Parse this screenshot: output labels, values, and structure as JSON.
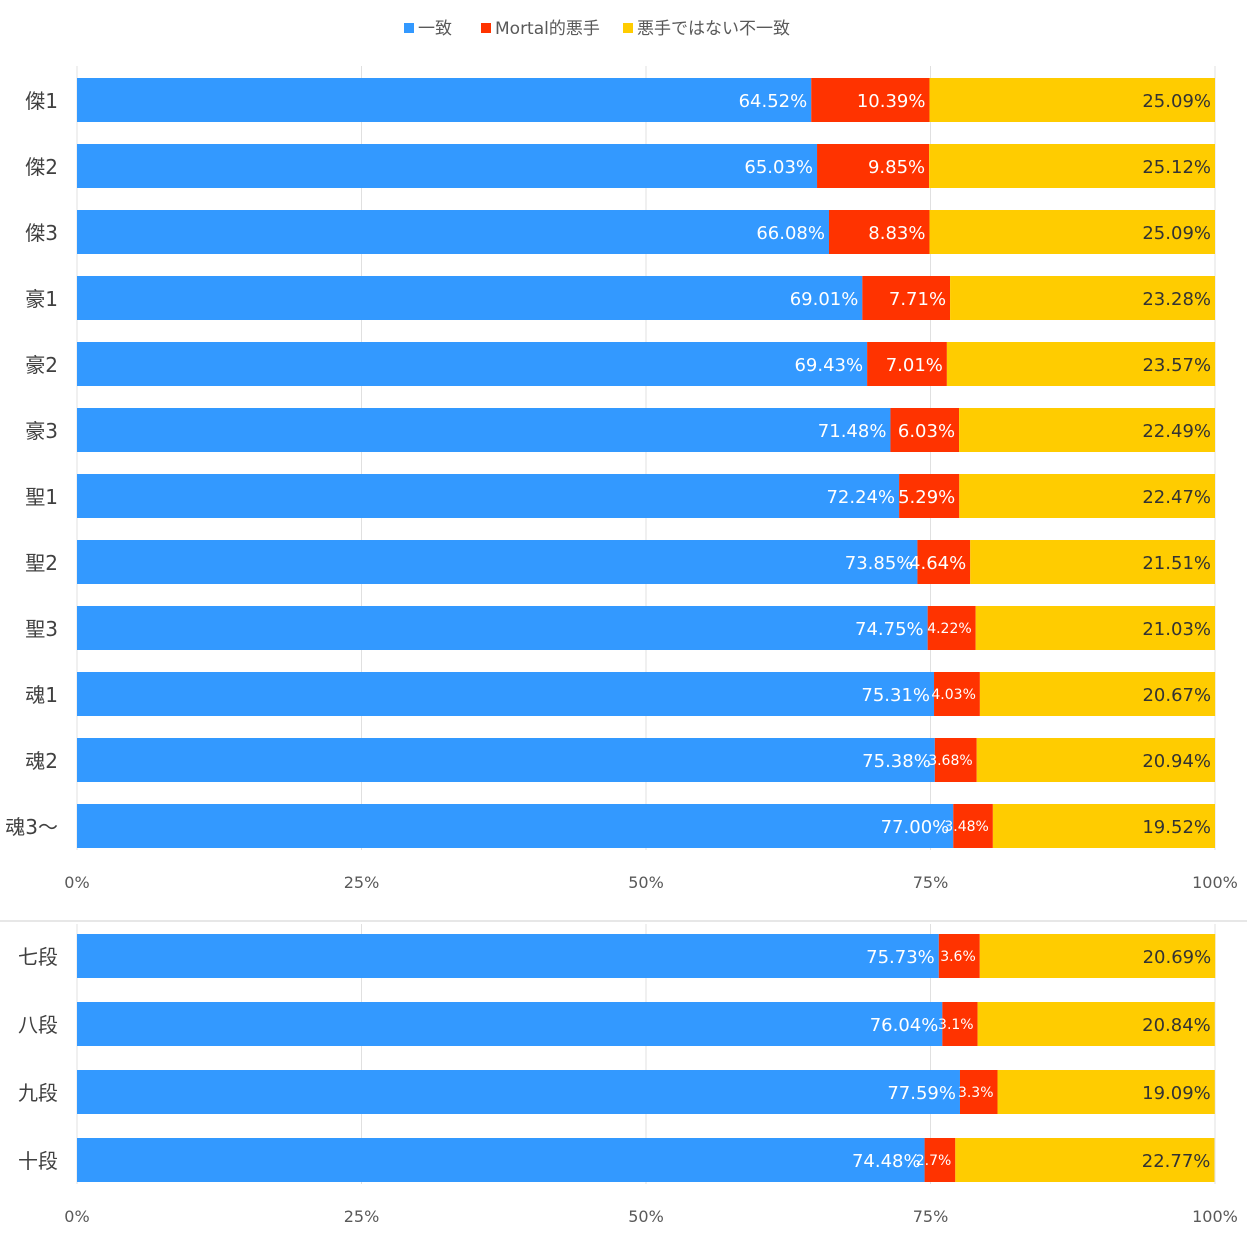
{
  "colors": {
    "match": "#3399ff",
    "bad": "#ff3300",
    "mismatch": "#ffcc00",
    "grid": "#e0e0e0",
    "divider": "#cfcfcf"
  },
  "chart_data": [
    {
      "type": "bar",
      "orientation": "horizontal",
      "stacked": "percent",
      "legend": [
        "一致",
        "Mortal的悪手",
        "悪手ではない不一致"
      ],
      "legend_position": "top",
      "grid": true,
      "xlim": [
        0,
        100
      ],
      "xticks": [
        "0%",
        "25%",
        "50%",
        "75%",
        "100%"
      ],
      "categories": [
        "傑1",
        "傑2",
        "傑3",
        "豪1",
        "豪2",
        "豪3",
        "聖1",
        "聖2",
        "聖3",
        "魂1",
        "魂2",
        "魂3〜"
      ],
      "series": [
        {
          "name": "一致",
          "values": [
            64.52,
            65.03,
            66.08,
            69.01,
            69.43,
            71.48,
            72.24,
            73.85,
            74.75,
            75.31,
            75.38,
            77.0
          ],
          "labels": [
            "64.52%",
            "65.03%",
            "66.08%",
            "69.01%",
            "69.43%",
            "71.48%",
            "72.24%",
            "73.85%",
            "74.75%",
            "75.31%",
            "75.38%",
            "77.00%"
          ]
        },
        {
          "name": "Mortal的悪手",
          "values": [
            10.39,
            9.85,
            8.83,
            7.71,
            7.01,
            6.03,
            5.29,
            4.64,
            4.22,
            4.03,
            3.68,
            3.48
          ],
          "labels": [
            "10.39%",
            "9.85%",
            "8.83%",
            "7.71%",
            "7.01%",
            "6.03%",
            "5.29%",
            "4.64%",
            "4.22%",
            "4.03%",
            "3.68%",
            "3.48%"
          ]
        },
        {
          "name": "悪手ではない不一致",
          "values": [
            25.09,
            25.12,
            25.09,
            23.28,
            23.57,
            22.49,
            22.47,
            21.51,
            21.03,
            20.67,
            20.94,
            19.52
          ],
          "labels": [
            "25.09%",
            "25.12%",
            "25.09%",
            "23.28%",
            "23.57%",
            "22.49%",
            "22.47%",
            "21.51%",
            "21.03%",
            "20.67%",
            "20.94%",
            "19.52%"
          ]
        }
      ]
    },
    {
      "type": "bar",
      "orientation": "horizontal",
      "stacked": "percent",
      "grid": true,
      "xlim": [
        0,
        100
      ],
      "xticks": [
        "0%",
        "25%",
        "50%",
        "75%",
        "100%"
      ],
      "categories": [
        "七段",
        "八段",
        "九段",
        "十段"
      ],
      "series": [
        {
          "name": "一致",
          "values": [
            75.73,
            76.04,
            77.59,
            74.48
          ],
          "labels": [
            "75.73%",
            "76.04%",
            "77.59%",
            "74.48%"
          ]
        },
        {
          "name": "Mortal的悪手",
          "values": [
            3.6,
            3.1,
            3.3,
            2.7
          ],
          "labels": [
            "3.6%",
            "3.1%",
            "3.3%",
            "2.7%"
          ]
        },
        {
          "name": "悪手ではない不一致",
          "values": [
            20.69,
            20.84,
            19.09,
            22.77
          ],
          "labels": [
            "20.69%",
            "20.84%",
            "19.09%",
            "22.77%"
          ]
        }
      ]
    }
  ]
}
